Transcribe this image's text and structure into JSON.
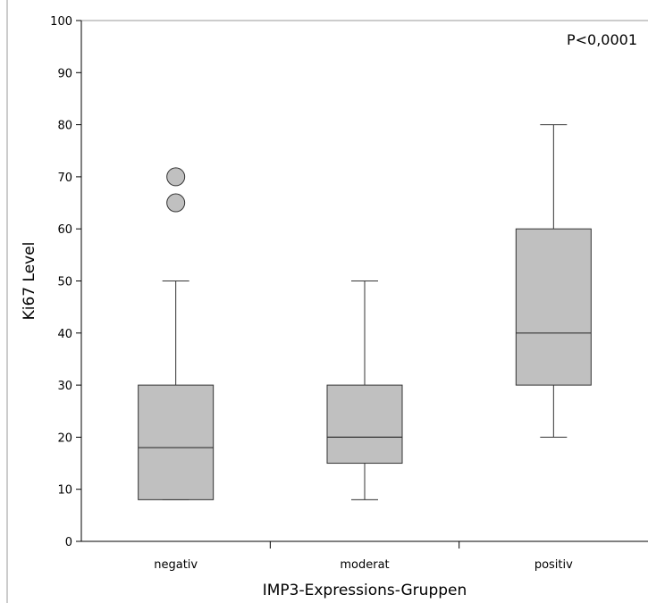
{
  "chart_data": {
    "type": "boxplot",
    "title": "",
    "xlabel": "IMP3-Expressions-Gruppen",
    "ylabel": "Ki67 Level",
    "annotation": "P<0,0001",
    "ylim": [
      0,
      100
    ],
    "yticks": [
      0,
      10,
      20,
      30,
      40,
      50,
      60,
      70,
      80,
      90,
      100
    ],
    "categories": [
      "negativ",
      "moderat",
      "positiv"
    ],
    "boxes": [
      {
        "category": "negativ",
        "whisker_low": 8,
        "q1": 8,
        "median": 18,
        "q3": 30,
        "whisker_high": 50,
        "outliers": [
          65,
          70
        ]
      },
      {
        "category": "moderat",
        "whisker_low": 8,
        "q1": 15,
        "median": 20,
        "q3": 30,
        "whisker_high": 50,
        "outliers": []
      },
      {
        "category": "positiv",
        "whisker_low": 20,
        "q1": 30,
        "median": 40,
        "q3": 60,
        "whisker_high": 80,
        "outliers": []
      }
    ],
    "colors": {
      "box_fill": "#c0c0c0",
      "stroke": "#333333",
      "axis": "#000000",
      "frame": "#999999"
    },
    "grid": false,
    "legend": "none"
  }
}
